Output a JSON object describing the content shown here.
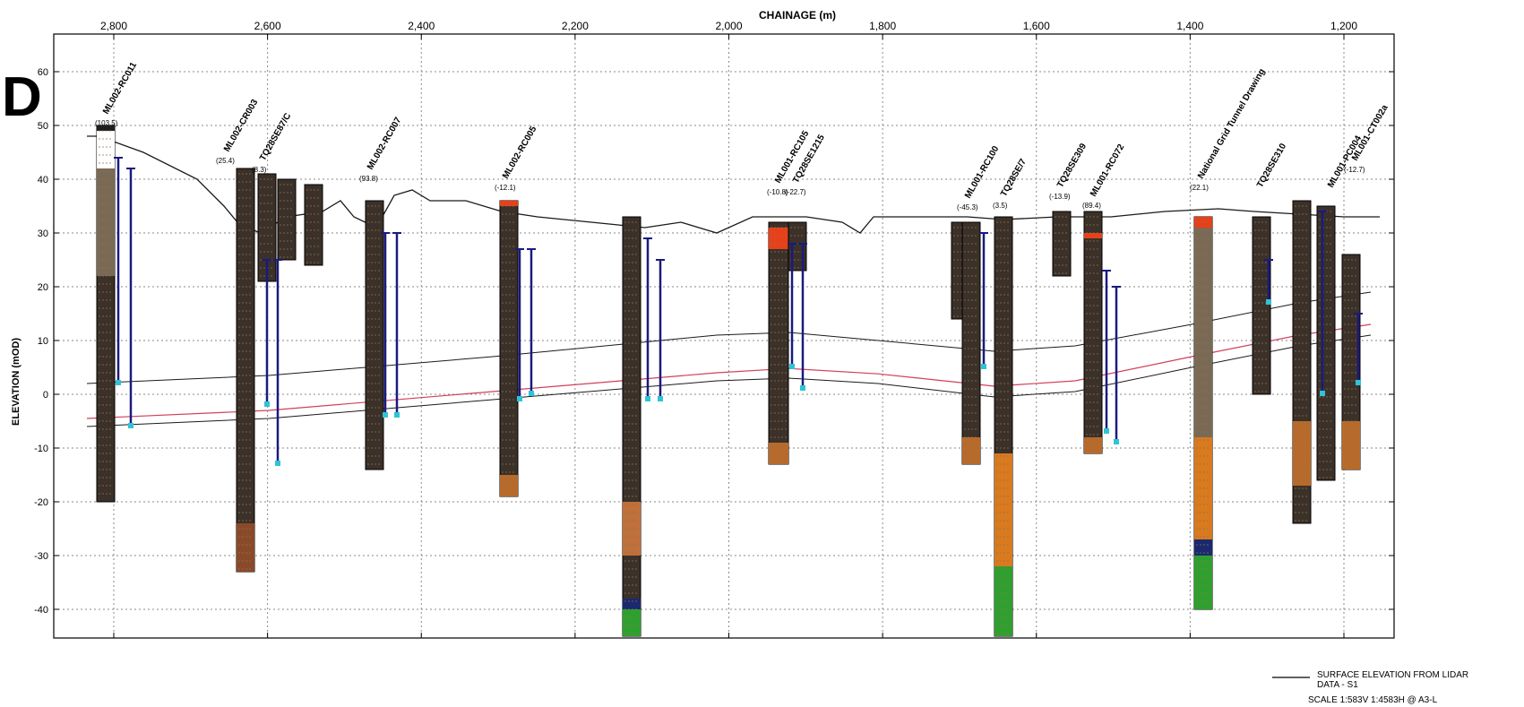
{
  "panel_label": "D",
  "axes": {
    "x_title": "CHAINAGE (m)",
    "y_title": "ELEVATION (mOD)",
    "x_ticks": [
      "2,800",
      "2,600",
      "2,400",
      "2,200",
      "2,000",
      "1,800",
      "1,600",
      "1,400",
      "1,200"
    ],
    "y_ticks": [
      "60",
      "50",
      "40",
      "30",
      "20",
      "10",
      "0",
      "-10",
      "-20",
      "-30",
      "-40"
    ]
  },
  "legend": {
    "surface_label_line1": "SURFACE ELEVATION FROM LIDAR",
    "surface_label_line2": "DATA - S1"
  },
  "scale_note": "SCALE 1:583V 1:4583H @ A3-L",
  "boreholes": [
    {
      "id": "ML002-RC011",
      "value": "(103.5)"
    },
    {
      "id": "ML002-CR003",
      "value": "(25.4)"
    },
    {
      "id": "TQ28SE87/C",
      "value": "(8.3)"
    },
    {
      "id": "ML002-RC007",
      "value": "(93.8)"
    },
    {
      "id": "ML002-RC005",
      "value": "(-12.1)"
    },
    {
      "id": "ML001-RC105",
      "value": "(-10.8)"
    },
    {
      "id": "TQ28SE1215",
      "value": "(-22.7)"
    },
    {
      "id": "ML001-RC100",
      "value": "(-45.3)"
    },
    {
      "id": "TQ28SE/7",
      "value": "(3.5)"
    },
    {
      "id": "TQ28SE309",
      "value": "(-13.9)"
    },
    {
      "id": "ML001-RC072",
      "value": "(89.4)"
    },
    {
      "id": "National Grid Tunnel Drawing",
      "value": "(22.1)"
    },
    {
      "id": "TQ28SE310",
      "value": ""
    },
    {
      "id": "ML001-PC004",
      "value": ""
    },
    {
      "id": "ML001-CT002a",
      "value": "(-12.7)"
    }
  ],
  "colors": {
    "grid": "#8a8a8a",
    "axis": "#000000",
    "surface_line": "#1a1a1a",
    "tunnel_red": "#d0405a",
    "strata_black": "#1e1e1e",
    "london_clay": "#3b3129",
    "made_ground": "#7a6a55",
    "lambeth_orange": "#d97a1e",
    "thanet_green": "#2fa02f",
    "chalk_navy": "#1b2a6e",
    "piezometer_blue": "#1a1a80",
    "water_cyan": "#2ec4d6",
    "topsoil_red": "#e8401a"
  }
}
